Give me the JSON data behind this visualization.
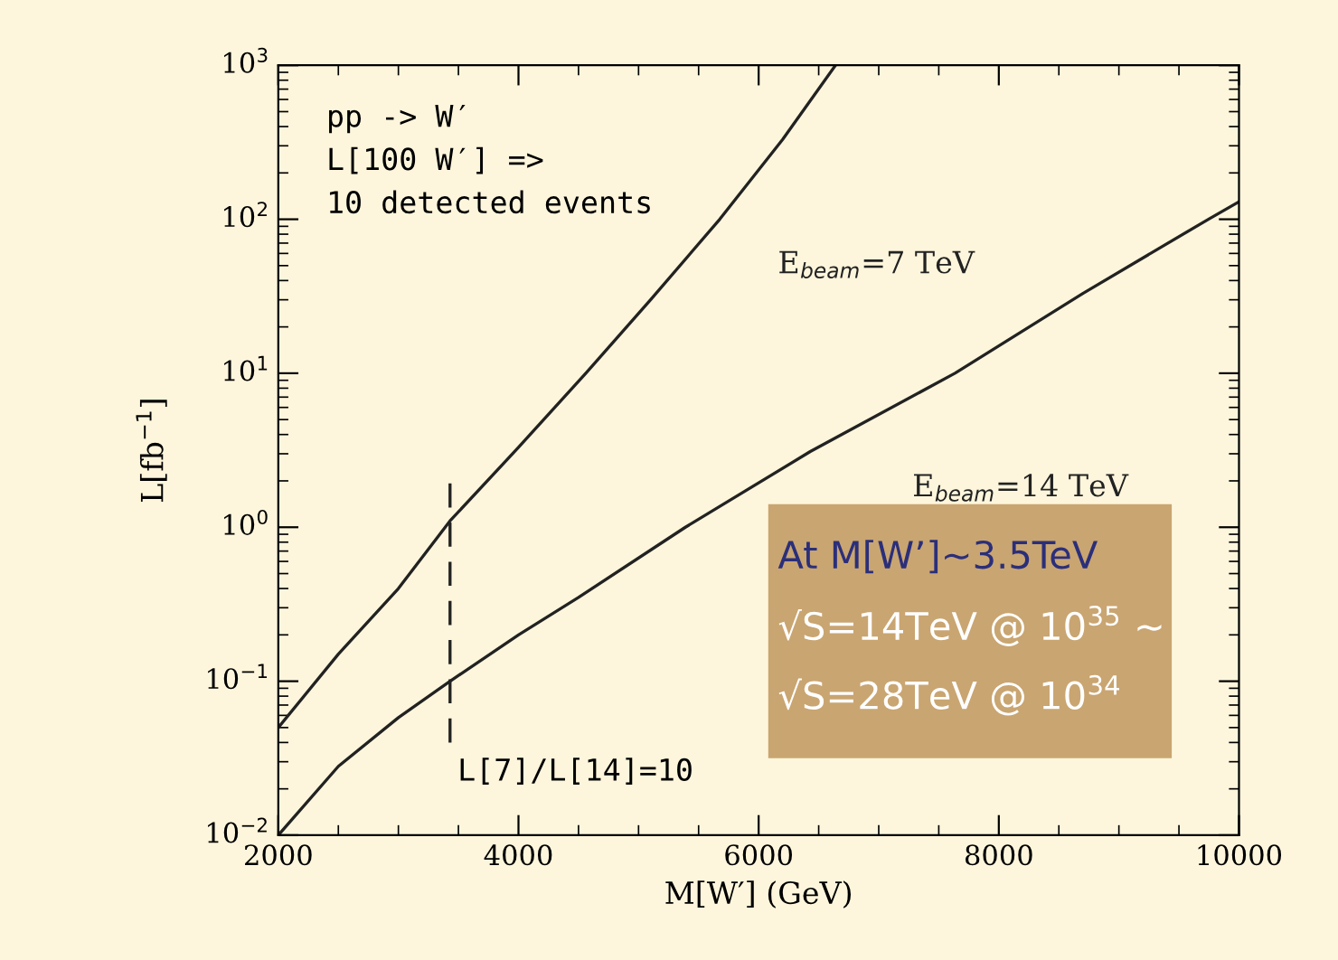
{
  "chart_data": {
    "type": "line",
    "xlabel": "M[W′] (GeV)",
    "ylabel": "L[fb$^{−1}$]",
    "log": "y",
    "xlim": [
      2000,
      10000
    ],
    "xticks": [
      2000,
      4000,
      6000,
      8000,
      10000
    ],
    "ylim": [
      0.01,
      1000
    ],
    "yticks": [
      {
        "value": 0.01,
        "label": "10$^{−2}$"
      },
      {
        "value": 0.1,
        "label": "10$^{−1}$"
      },
      {
        "value": 1,
        "label": "10$^{0}$"
      },
      {
        "value": 10,
        "label": "10$^{1}$"
      },
      {
        "value": 100,
        "label": "10$^{2}$"
      },
      {
        "value": 1000,
        "label": "10$^{3}$"
      }
    ],
    "grid": false,
    "legend": false,
    "marker": "none",
    "line_style": "solid",
    "series": [
      {
        "name": "E$_{beam}$=7 TeV",
        "color": "#222222",
        "x": [
          2000,
          2500,
          3000,
          3430,
          4000,
          4561,
          5100,
          5676,
          6200,
          6640
        ],
        "values": [
          0.05,
          0.15,
          0.4,
          1.1,
          3.3,
          10,
          30,
          100,
          330,
          1000
        ]
      },
      {
        "name": "E$_{beam}$=14 TeV",
        "color": "#222222",
        "x": [
          2000,
          2500,
          3000,
          3430,
          4000,
          4500,
          5390,
          6430,
          7635,
          8700,
          9745,
          10000
        ],
        "values": [
          0.01,
          0.028,
          0.058,
          0.1,
          0.2,
          0.35,
          1,
          3.1,
          10,
          33,
          100,
          130
        ]
      },
      {
        "type": "line",
        "line_style": "dashed",
        "color": "#222222",
        "x": [
          3430,
          3430
        ],
        "values": [
          0.04,
          2.1
        ]
      }
    ],
    "annotations": [
      "pp -> W′\nL[100 W′] =>\n10 detected events",
      {
        "text": "L[7]/L[14]=10",
        "x": 3430,
        "y": 0.04
      },
      "At M[W’]~3.5TeV",
      "√S=14TeV @ 10$^{35}$ ~",
      "√S=28TeV @ 10$^{34}$"
    ]
  }
}
